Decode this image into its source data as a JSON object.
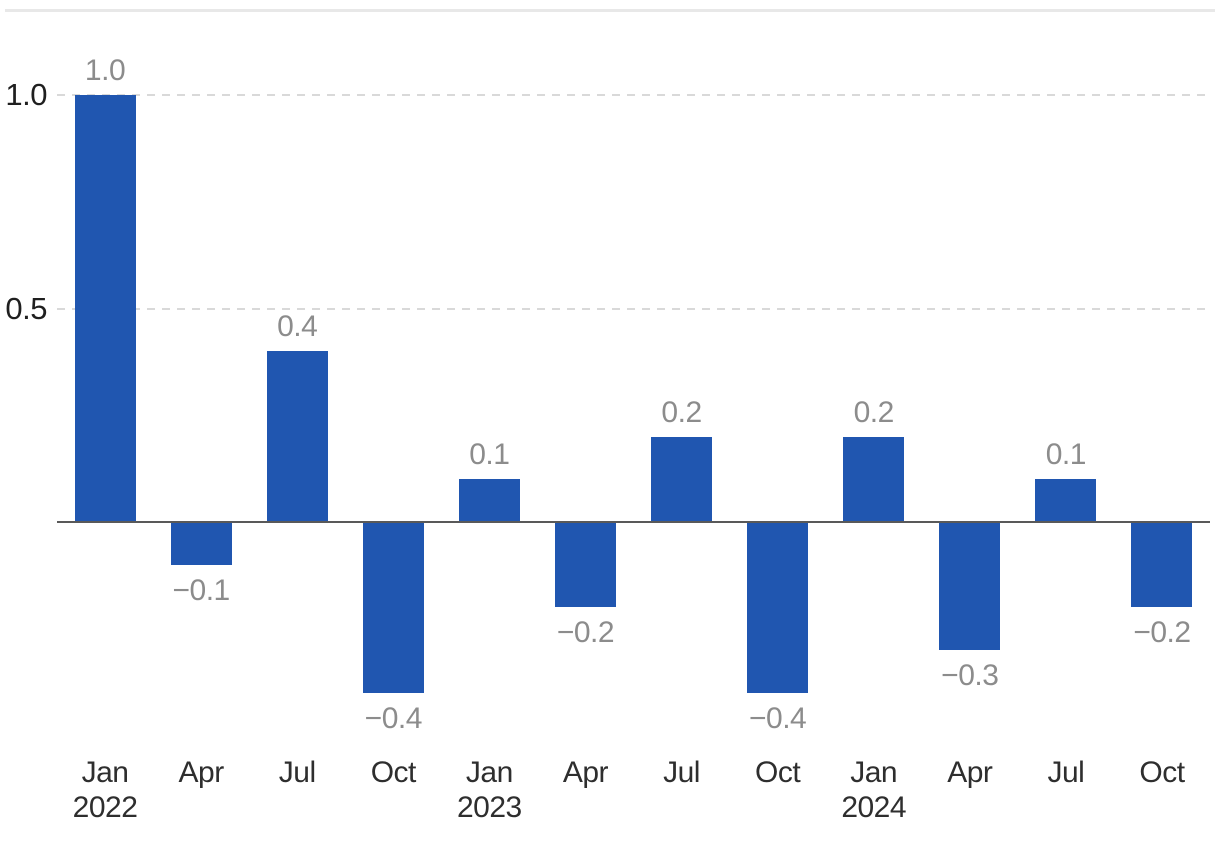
{
  "chart_data": {
    "type": "bar",
    "title": "",
    "xlabel": "",
    "ylabel": "",
    "categories": [
      "Jan 2022",
      "Apr 2022",
      "Jul 2022",
      "Oct 2022",
      "Jan 2023",
      "Apr 2023",
      "Jul 2023",
      "Oct 2023",
      "Jan 2024",
      "Apr 2024",
      "Jul 2024",
      "Oct 2024"
    ],
    "values": [
      1.0,
      -0.1,
      0.4,
      -0.4,
      0.1,
      -0.2,
      0.2,
      -0.4,
      0.2,
      -0.3,
      0.1,
      -0.2
    ],
    "value_labels": [
      "1.0",
      "−0.1",
      "0.4",
      "−0.4",
      "0.1",
      "−0.2",
      "0.2",
      "−0.4",
      "0.2",
      "−0.3",
      "0.1",
      "−0.2"
    ],
    "x_tick_labels": [
      {
        "month": "Jan",
        "year": "2022"
      },
      {
        "month": "Apr",
        "year": ""
      },
      {
        "month": "Jul",
        "year": ""
      },
      {
        "month": "Oct",
        "year": ""
      },
      {
        "month": "Jan",
        "year": "2023"
      },
      {
        "month": "Apr",
        "year": ""
      },
      {
        "month": "Jul",
        "year": ""
      },
      {
        "month": "Oct",
        "year": ""
      },
      {
        "month": "Jan",
        "year": "2024"
      },
      {
        "month": "Apr",
        "year": ""
      },
      {
        "month": "Jul",
        "year": ""
      },
      {
        "month": "Oct",
        "year": ""
      }
    ],
    "y_axis": {
      "ticks": [
        {
          "label": "1.0",
          "value": 1.0
        },
        {
          "label": "0.5",
          "value": 0.5
        }
      ],
      "baseline": 0,
      "ylim": [
        -0.55,
        1.1
      ],
      "gridline_style": "dashed"
    },
    "legend": null,
    "colors": {
      "bar": "#2056b0",
      "value_label": "#8c8c8c",
      "y_tick_label": "#1f1f1f",
      "x_tick_label": "#2e2e2e",
      "zero_line": "#595959",
      "gridline": "#d9d9d9",
      "top_divider": "#e8e8e8"
    }
  }
}
